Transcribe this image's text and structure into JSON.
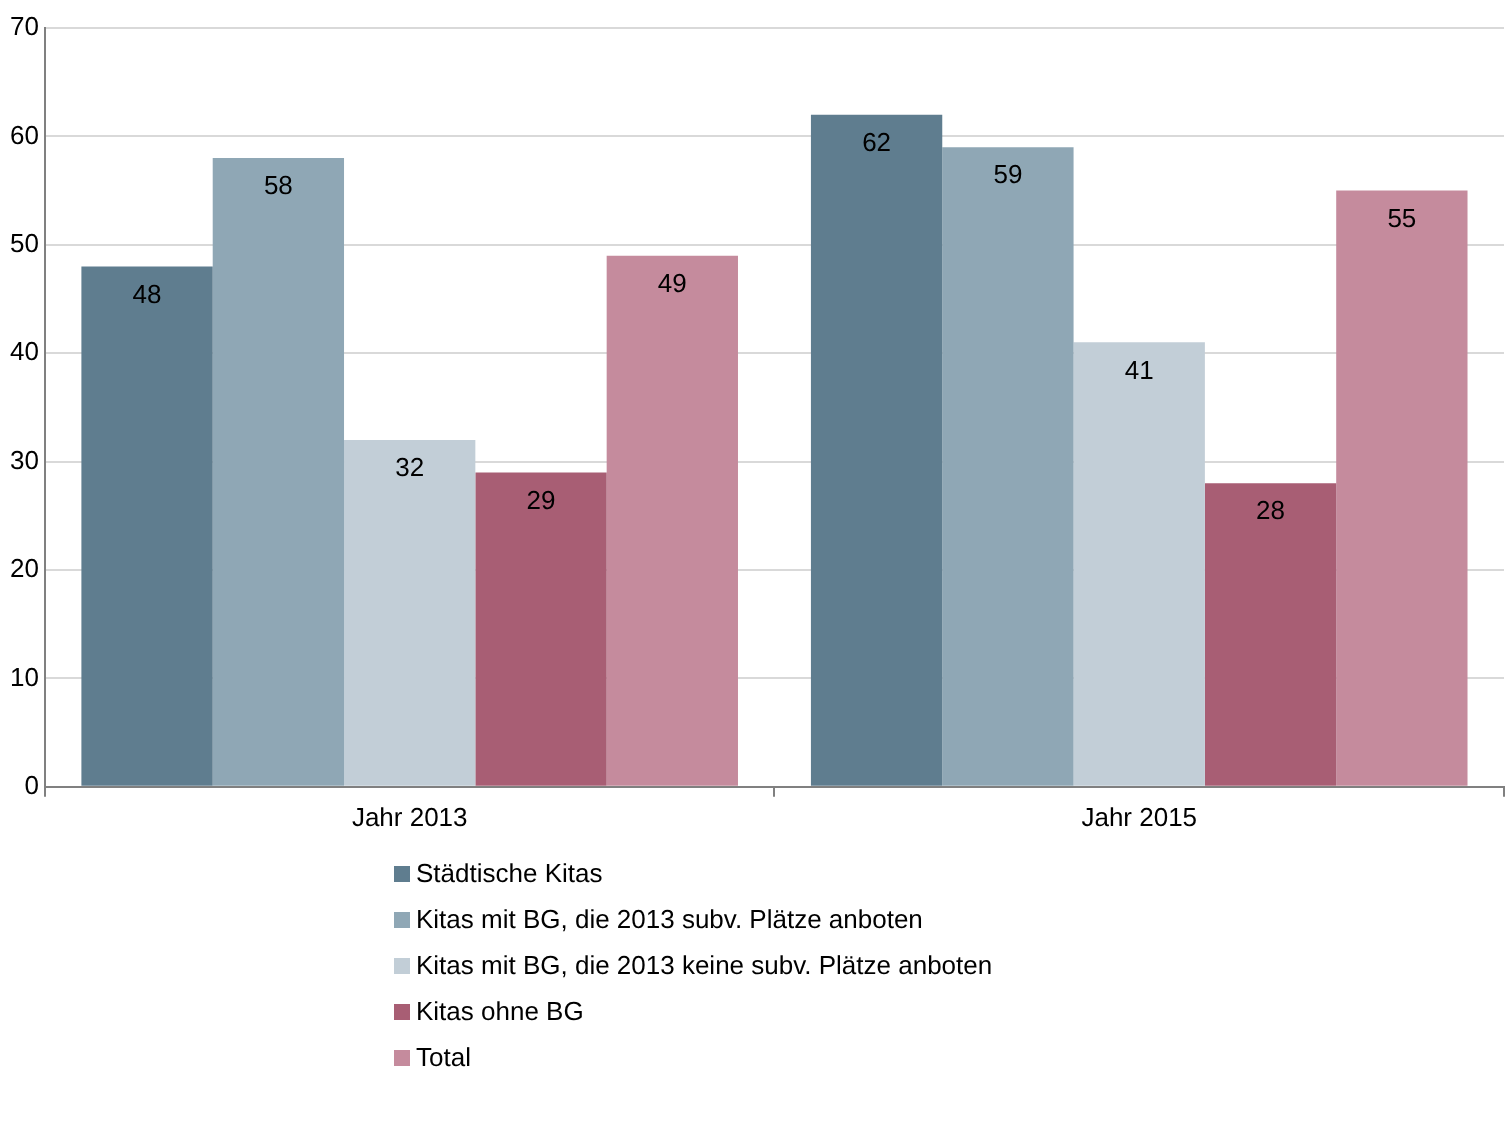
{
  "chart_data": {
    "type": "bar",
    "categories": [
      "Jahr 2013",
      "Jahr 2015"
    ],
    "series": [
      {
        "name": "Städtische Kitas",
        "color": "#5f7d8f",
        "values": [
          48,
          62
        ]
      },
      {
        "name": "Kitas mit BG, die 2013 subv. Plätze anboten",
        "color": "#8fa7b5",
        "values": [
          58,
          59
        ]
      },
      {
        "name": "Kitas mit BG, die 2013 keine subv. Plätze anboten",
        "color": "#c2ced7",
        "values": [
          32,
          41
        ]
      },
      {
        "name": "Kitas ohne BG",
        "color": "#a85e74",
        "values": [
          29,
          28
        ]
      },
      {
        "name": "Total",
        "color": "#c58b9d",
        "values": [
          49,
          55
        ]
      }
    ],
    "ylim": [
      0,
      70
    ],
    "yticks": [
      0,
      10,
      20,
      30,
      40,
      50,
      60,
      70
    ],
    "grid": "y",
    "legend": "bottom",
    "data_labels": true
  }
}
